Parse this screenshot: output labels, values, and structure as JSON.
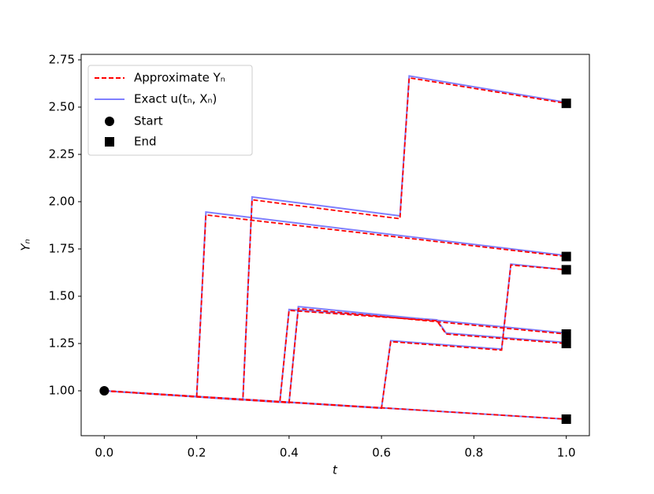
{
  "chart_data": {
    "type": "line",
    "xlabel": "t",
    "ylabel": "Yₙ",
    "xlim": [
      -0.05,
      1.05
    ],
    "ylim": [
      0.7625,
      2.779
    ],
    "xticks": [
      {
        "value": 0,
        "label": "0.0"
      },
      0.2,
      0.4,
      0.6,
      0.8,
      {
        "value": 1,
        "label": "1.0"
      }
    ],
    "yticks": [
      {
        "value": 1,
        "label": "1.00"
      },
      1.25,
      {
        "value": 1.5,
        "label": "1.50"
      },
      1.75,
      {
        "value": 2,
        "label": "2.00"
      },
      2.25,
      {
        "value": 2.5,
        "label": "2.50"
      },
      2.75
    ],
    "series": [
      {
        "name": "Approximate Yₙ",
        "color": "#ff0000",
        "style": "dashed"
      },
      {
        "name": "Exact u(tₙ, Xₙ)",
        "color": "#7f7fff",
        "style": "solid"
      }
    ],
    "start": {
      "name": "Start",
      "x": 0,
      "y": 1.0
    },
    "end_name": "End",
    "legend": "upper left",
    "trajectories": [
      {
        "x": [
          0,
          1.0
        ],
        "approximate": [
          1.0,
          0.85
        ],
        "exact": [
          1.0,
          0.85
        ]
      },
      {
        "x": [
          0,
          0.2,
          0.22,
          1.0
        ],
        "approximate": [
          1.0,
          0.968,
          1.93,
          1.71
        ],
        "exact": [
          1.0,
          0.968,
          1.945,
          1.715
        ]
      },
      {
        "x": [
          0,
          0.3,
          0.32,
          0.64,
          0.66,
          1.0
        ],
        "approximate": [
          1.0,
          0.952,
          2.01,
          1.91,
          2.655,
          2.52
        ],
        "exact": [
          1.0,
          0.952,
          2.025,
          1.925,
          2.665,
          2.525
        ]
      },
      {
        "x": [
          0,
          0.38,
          0.4,
          0.72,
          0.74,
          1.0
        ],
        "approximate": [
          1.0,
          0.94,
          1.425,
          1.37,
          1.3,
          1.25
        ],
        "exact": [
          1.0,
          0.94,
          1.43,
          1.375,
          1.305,
          1.255
        ]
      },
      {
        "x": [
          0,
          0.4,
          0.42,
          1.0
        ],
        "approximate": [
          1.0,
          0.937,
          1.435,
          1.3
        ],
        "exact": [
          1.0,
          0.937,
          1.445,
          1.305
        ]
      },
      {
        "x": [
          0,
          0.6,
          0.62,
          0.86,
          0.88,
          1.0
        ],
        "approximate": [
          1.0,
          0.908,
          1.26,
          1.215,
          1.665,
          1.64
        ],
        "exact": [
          1.0,
          0.908,
          1.265,
          1.22,
          1.67,
          1.64
        ]
      }
    ]
  }
}
